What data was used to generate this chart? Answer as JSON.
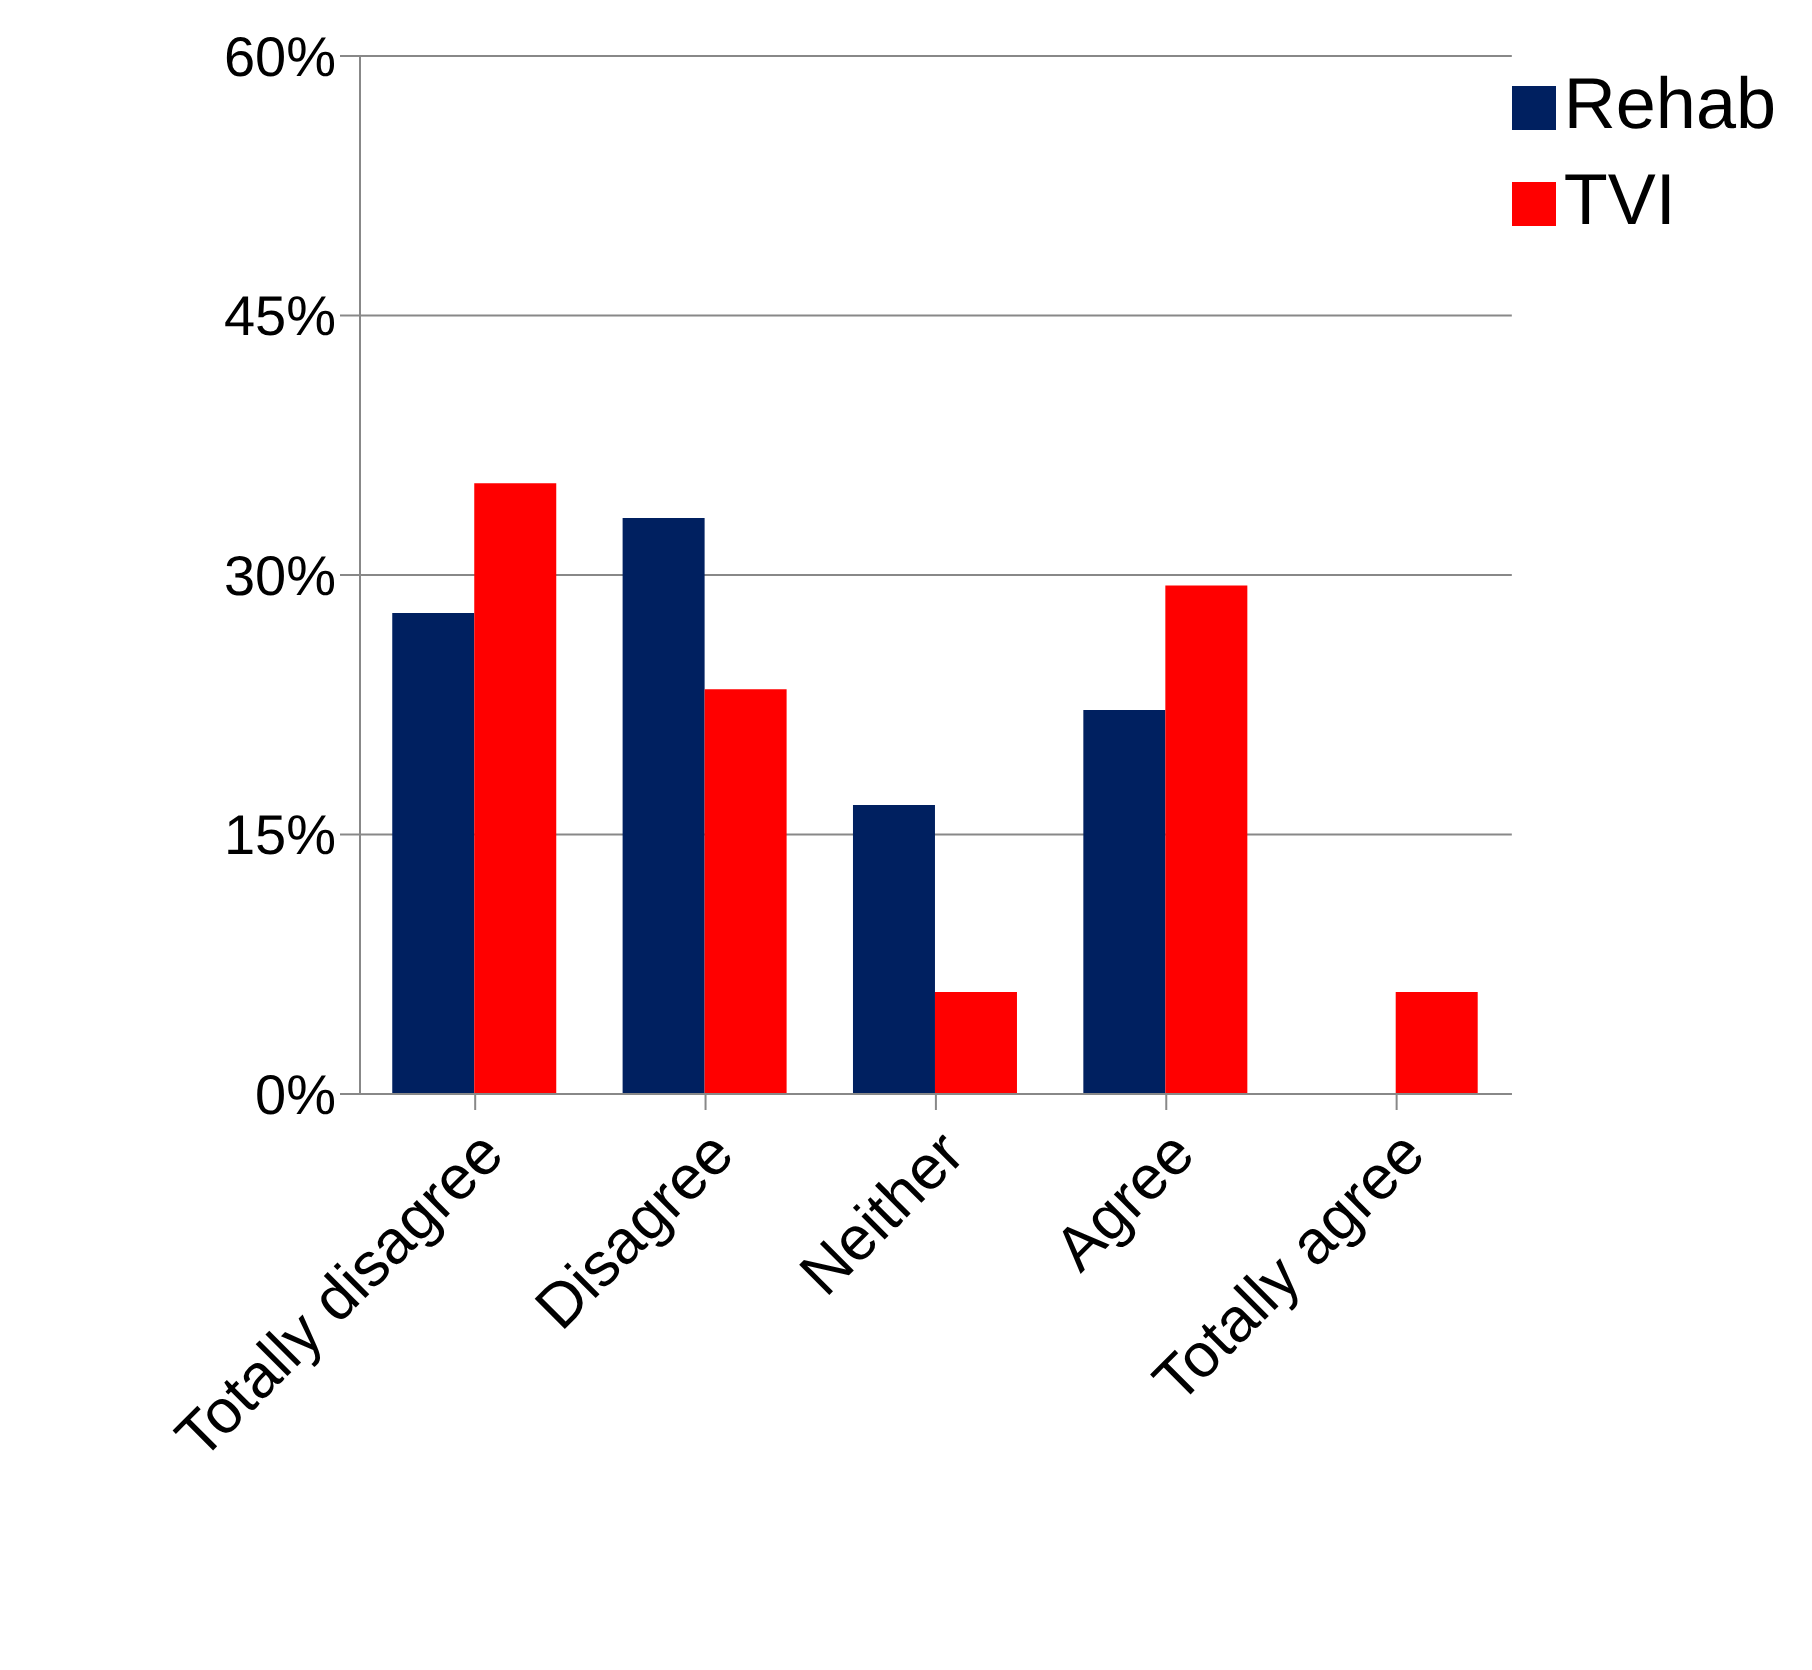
{
  "chart_data": {
    "type": "bar",
    "categories": [
      "Totally disagree",
      "Disagree",
      "Neither",
      "Agree",
      "Totally agree"
    ],
    "series": [
      {
        "name": "Rehab",
        "color": "#002060",
        "values": [
          27.8,
          33.3,
          16.7,
          22.2,
          0
        ]
      },
      {
        "name": "TVI",
        "color": "#ff0000",
        "values": [
          35.3,
          23.4,
          5.9,
          29.4,
          5.9
        ]
      }
    ],
    "ylim": [
      0,
      60
    ],
    "yticks": [
      {
        "value": 0,
        "label": "0%"
      },
      {
        "value": 15,
        "label": "15%"
      },
      {
        "value": 30,
        "label": "30%"
      },
      {
        "value": 45,
        "label": "45%"
      },
      {
        "value": 60,
        "label": "60%"
      }
    ],
    "grid": "y",
    "legend": "top right"
  }
}
